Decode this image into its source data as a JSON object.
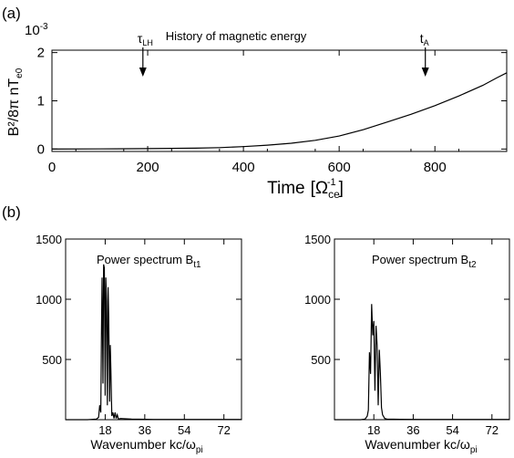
{
  "chart_data": [
    {
      "panel": "(a)",
      "type": "line",
      "title": "History of magnetic energy",
      "xlabel_main": "Time",
      "xlabel_bracket_open": "[",
      "xlabel_symbol": "Ω",
      "xlabel_sub": "ce",
      "xlabel_sup": "-1",
      "xlabel_bracket_close": "]",
      "ylabel_text": "B²/8π nT",
      "ylabel_sub": "e0",
      "y_multiplier": "10",
      "y_multiplier_sup": "-3",
      "xlim": [
        0,
        950
      ],
      "ylim": [
        -0.05,
        2.05
      ],
      "x_ticks": [
        0,
        200,
        400,
        600,
        800
      ],
      "x_tick_labels": [
        "0",
        "200",
        "400",
        "600",
        "800"
      ],
      "y_ticks": [
        0,
        1,
        2
      ],
      "y_tick_labels": [
        "0",
        "1",
        "2"
      ],
      "annotations": [
        {
          "symbol": "τ",
          "sub": "LH",
          "x": 190
        },
        {
          "symbol": "t",
          "sub": "A",
          "x": 780
        }
      ],
      "x": [
        0,
        100,
        200,
        300,
        350,
        400,
        450,
        500,
        550,
        600,
        650,
        700,
        750,
        800,
        850,
        900,
        930,
        950
      ],
      "y": [
        0,
        0.003,
        0.008,
        0.018,
        0.03,
        0.05,
        0.08,
        0.12,
        0.18,
        0.27,
        0.4,
        0.56,
        0.72,
        0.9,
        1.1,
        1.32,
        1.48,
        1.58
      ]
    },
    {
      "panel": "(b)",
      "type": "line",
      "title_text": "Power spectrum  B",
      "title_sub": "t1",
      "xlabel_text": "Wavenumber  kc/ω",
      "xlabel_sub": "pi",
      "xlim": [
        0,
        80
      ],
      "ylim": [
        0,
        1500
      ],
      "x_ticks": [
        18,
        36,
        54,
        72
      ],
      "x_tick_labels": [
        "18",
        "36",
        "54",
        "72"
      ],
      "y_ticks": [
        500,
        1000,
        1500
      ],
      "y_tick_labels": [
        "500",
        "1000",
        "1500"
      ],
      "x": [
        0,
        10,
        14,
        15,
        15.5,
        16,
        16.3,
        16.6,
        17,
        17.3,
        17.6,
        18,
        18.3,
        18.6,
        19,
        19.3,
        19.6,
        20,
        20.3,
        20.6,
        21,
        21.5,
        22,
        22.5,
        23,
        23.5,
        24,
        25,
        30,
        40,
        60,
        80
      ],
      "y": [
        0,
        0,
        5,
        20,
        120,
        60,
        700,
        1180,
        300,
        1290,
        1260,
        200,
        1180,
        980,
        120,
        1100,
        850,
        150,
        620,
        400,
        30,
        60,
        10,
        60,
        10,
        40,
        5,
        10,
        5,
        2,
        2,
        2
      ]
    },
    {
      "panel": "(b)",
      "type": "line",
      "title_text": "Power spectrum  B",
      "title_sub": "t2",
      "xlabel_text": "Wavenumber  kc/ω",
      "xlabel_sub": "pi",
      "xlim": [
        0,
        80
      ],
      "ylim": [
        0,
        1500
      ],
      "x_ticks": [
        18,
        36,
        54,
        72
      ],
      "x_tick_labels": [
        "18",
        "36",
        "54",
        "72"
      ],
      "y_ticks": [
        500,
        1000,
        1500
      ],
      "y_tick_labels": [
        "500",
        "1000",
        "1500"
      ],
      "x": [
        0,
        12,
        14,
        15,
        15.5,
        16,
        16.5,
        17,
        17.5,
        18,
        18.5,
        19,
        19.5,
        20,
        20.5,
        21,
        21.5,
        22,
        23,
        24,
        30,
        40,
        60,
        80
      ],
      "y": [
        0,
        0,
        5,
        30,
        80,
        560,
        380,
        960,
        700,
        820,
        240,
        780,
        620,
        120,
        580,
        380,
        100,
        40,
        10,
        5,
        3,
        2,
        2,
        2
      ]
    }
  ],
  "labels": {
    "panel_a": "(a)",
    "panel_b": "(b)"
  }
}
